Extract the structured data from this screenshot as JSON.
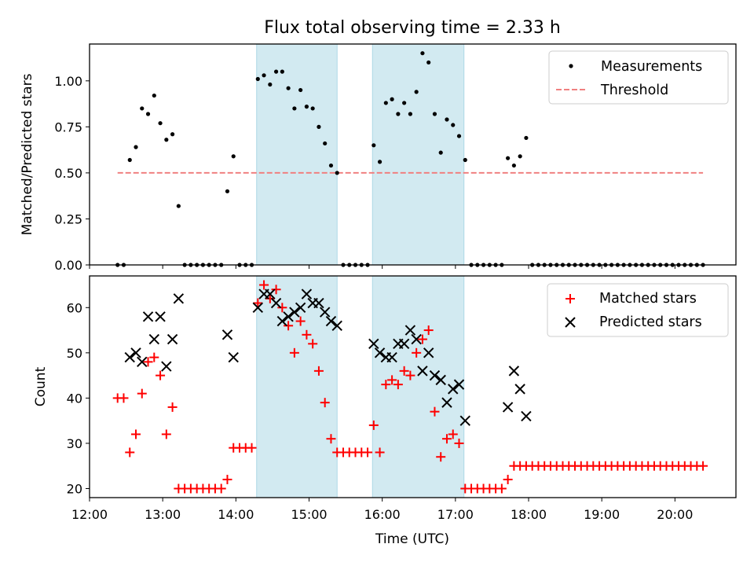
{
  "chart_data": [
    {
      "type": "scatter",
      "title": "Flux total observing time = 2.33 h",
      "xlabel": "",
      "ylabel": "Matched/Predicted stars",
      "xlim": [
        "12:00",
        "20:50"
      ],
      "ylim": [
        0,
        1.2
      ],
      "yticks": [
        "0.00",
        "0.25",
        "0.50",
        "0.75",
        "1.00"
      ],
      "grid": false,
      "legend_position": "top-right",
      "shaded_intervals": [
        [
          "14:17",
          "15:23"
        ],
        [
          "15:52",
          "17:07"
        ]
      ],
      "shade_color": "#add8e6",
      "series": [
        {
          "name": "Measurements",
          "kind": "points",
          "color": "#000000",
          "points": [
            [
              "12:23",
              0
            ],
            [
              "12:28",
              0
            ],
            [
              "12:33",
              0.57
            ],
            [
              "12:38",
              0.64
            ],
            [
              "12:43",
              0.85
            ],
            [
              "12:48",
              0.82
            ],
            [
              "12:53",
              0.92
            ],
            [
              "12:58",
              0.77
            ],
            [
              "13:03",
              0.68
            ],
            [
              "13:08",
              0.71
            ],
            [
              "13:13",
              0.32
            ],
            [
              "13:18",
              0
            ],
            [
              "13:23",
              0
            ],
            [
              "13:28",
              0
            ],
            [
              "13:33",
              0
            ],
            [
              "13:38",
              0
            ],
            [
              "13:43",
              0
            ],
            [
              "13:48",
              0
            ],
            [
              "13:53",
              0.4
            ],
            [
              "13:58",
              0.59
            ],
            [
              "14:03",
              0
            ],
            [
              "14:08",
              0
            ],
            [
              "14:13",
              0
            ],
            [
              "14:18",
              1.01
            ],
            [
              "14:23",
              1.03
            ],
            [
              "14:28",
              0.98
            ],
            [
              "14:33",
              1.05
            ],
            [
              "14:38",
              1.05
            ],
            [
              "14:43",
              0.96
            ],
            [
              "14:48",
              0.85
            ],
            [
              "14:53",
              0.95
            ],
            [
              "14:58",
              0.86
            ],
            [
              "15:03",
              0.85
            ],
            [
              "15:08",
              0.75
            ],
            [
              "15:13",
              0.66
            ],
            [
              "15:18",
              0.54
            ],
            [
              "15:23",
              0.5
            ],
            [
              "15:28",
              0
            ],
            [
              "15:33",
              0
            ],
            [
              "15:38",
              0
            ],
            [
              "15:43",
              0
            ],
            [
              "15:48",
              0
            ],
            [
              "15:53",
              0.65
            ],
            [
              "15:58",
              0.56
            ],
            [
              "16:03",
              0.88
            ],
            [
              "16:08",
              0.9
            ],
            [
              "16:13",
              0.82
            ],
            [
              "16:18",
              0.88
            ],
            [
              "16:23",
              0.82
            ],
            [
              "16:28",
              0.94
            ],
            [
              "16:33",
              1.15
            ],
            [
              "16:38",
              1.1
            ],
            [
              "16:43",
              0.82
            ],
            [
              "16:48",
              0.61
            ],
            [
              "16:53",
              0.79
            ],
            [
              "16:58",
              0.76
            ],
            [
              "17:03",
              0.7
            ],
            [
              "17:08",
              0.57
            ],
            [
              "17:13",
              0
            ],
            [
              "17:18",
              0
            ],
            [
              "17:23",
              0
            ],
            [
              "17:28",
              0
            ],
            [
              "17:33",
              0
            ],
            [
              "17:38",
              0
            ],
            [
              "17:43",
              0.58
            ],
            [
              "17:48",
              0.54
            ],
            [
              "17:53",
              0.59
            ],
            [
              "17:58",
              0.69
            ],
            [
              "18:03",
              0
            ],
            [
              "18:08",
              0
            ],
            [
              "18:13",
              0
            ],
            [
              "18:18",
              0
            ],
            [
              "18:23",
              0
            ],
            [
              "18:28",
              0
            ],
            [
              "18:33",
              0
            ],
            [
              "18:38",
              0
            ],
            [
              "18:43",
              0
            ],
            [
              "18:48",
              0
            ],
            [
              "18:53",
              0
            ],
            [
              "18:58",
              0
            ],
            [
              "19:03",
              0
            ],
            [
              "19:08",
              0
            ],
            [
              "19:13",
              0
            ],
            [
              "19:18",
              0
            ],
            [
              "19:23",
              0
            ],
            [
              "19:28",
              0
            ],
            [
              "19:33",
              0
            ],
            [
              "19:38",
              0
            ],
            [
              "19:43",
              0
            ],
            [
              "19:48",
              0
            ],
            [
              "19:53",
              0
            ],
            [
              "19:58",
              0
            ],
            [
              "20:03",
              0
            ],
            [
              "20:08",
              0
            ],
            [
              "20:13",
              0
            ],
            [
              "20:18",
              0
            ],
            [
              "20:23",
              0
            ]
          ]
        },
        {
          "name": "Threshold",
          "kind": "dashed-line",
          "color": "#f08080",
          "points": [
            [
              "12:23",
              0.5
            ],
            [
              "20:23",
              0.5
            ]
          ]
        }
      ]
    },
    {
      "type": "scatter",
      "title": "",
      "xlabel": "Time (UTC)",
      "ylabel": "Count",
      "xlim": [
        "12:00",
        "20:50"
      ],
      "ylim": [
        18,
        67
      ],
      "yticks": [
        "20",
        "30",
        "40",
        "50",
        "60"
      ],
      "xticks": [
        "12:00",
        "13:00",
        "14:00",
        "15:00",
        "16:00",
        "17:00",
        "18:00",
        "19:00",
        "20:00"
      ],
      "grid": false,
      "legend_position": "top-right",
      "shaded_intervals": [
        [
          "14:17",
          "15:23"
        ],
        [
          "15:52",
          "17:07"
        ]
      ],
      "shade_color": "#add8e6",
      "series": [
        {
          "name": "Matched stars",
          "marker": "plus",
          "color": "#ff0000",
          "points": [
            [
              "12:23",
              40
            ],
            [
              "12:28",
              40
            ],
            [
              "12:33",
              28
            ],
            [
              "12:38",
              32
            ],
            [
              "12:43",
              41
            ],
            [
              "12:48",
              48
            ],
            [
              "12:53",
              49
            ],
            [
              "12:58",
              45
            ],
            [
              "13:03",
              32
            ],
            [
              "13:08",
              38
            ],
            [
              "13:13",
              20
            ],
            [
              "13:18",
              20
            ],
            [
              "13:23",
              20
            ],
            [
              "13:28",
              20
            ],
            [
              "13:33",
              20
            ],
            [
              "13:38",
              20
            ],
            [
              "13:43",
              20
            ],
            [
              "13:48",
              20
            ],
            [
              "13:53",
              22
            ],
            [
              "13:58",
              29
            ],
            [
              "14:03",
              29
            ],
            [
              "14:08",
              29
            ],
            [
              "14:13",
              29
            ],
            [
              "14:18",
              61
            ],
            [
              "14:23",
              65
            ],
            [
              "14:28",
              62
            ],
            [
              "14:33",
              64
            ],
            [
              "14:38",
              60
            ],
            [
              "14:43",
              56
            ],
            [
              "14:48",
              50
            ],
            [
              "14:53",
              57
            ],
            [
              "14:58",
              54
            ],
            [
              "15:03",
              52
            ],
            [
              "15:08",
              46
            ],
            [
              "15:13",
              39
            ],
            [
              "15:18",
              31
            ],
            [
              "15:23",
              28
            ],
            [
              "15:28",
              28
            ],
            [
              "15:33",
              28
            ],
            [
              "15:38",
              28
            ],
            [
              "15:43",
              28
            ],
            [
              "15:48",
              28
            ],
            [
              "15:53",
              34
            ],
            [
              "15:58",
              28
            ],
            [
              "16:03",
              43
            ],
            [
              "16:08",
              44
            ],
            [
              "16:13",
              43
            ],
            [
              "16:18",
              46
            ],
            [
              "16:23",
              45
            ],
            [
              "16:28",
              50
            ],
            [
              "16:33",
              53
            ],
            [
              "16:38",
              55
            ],
            [
              "16:43",
              37
            ],
            [
              "16:48",
              27
            ],
            [
              "16:53",
              31
            ],
            [
              "16:58",
              32
            ],
            [
              "17:03",
              30
            ],
            [
              "17:08",
              20
            ],
            [
              "17:13",
              20
            ],
            [
              "17:18",
              20
            ],
            [
              "17:23",
              20
            ],
            [
              "17:28",
              20
            ],
            [
              "17:33",
              20
            ],
            [
              "17:38",
              20
            ],
            [
              "17:43",
              22
            ],
            [
              "17:48",
              25
            ],
            [
              "17:53",
              25
            ],
            [
              "17:58",
              25
            ],
            [
              "18:03",
              25
            ],
            [
              "18:08",
              25
            ],
            [
              "18:13",
              25
            ],
            [
              "18:18",
              25
            ],
            [
              "18:23",
              25
            ],
            [
              "18:28",
              25
            ],
            [
              "18:33",
              25
            ],
            [
              "18:38",
              25
            ],
            [
              "18:43",
              25
            ],
            [
              "18:48",
              25
            ],
            [
              "18:53",
              25
            ],
            [
              "18:58",
              25
            ],
            [
              "19:03",
              25
            ],
            [
              "19:08",
              25
            ],
            [
              "19:13",
              25
            ],
            [
              "19:18",
              25
            ],
            [
              "19:23",
              25
            ],
            [
              "19:28",
              25
            ],
            [
              "19:33",
              25
            ],
            [
              "19:38",
              25
            ],
            [
              "19:43",
              25
            ],
            [
              "19:48",
              25
            ],
            [
              "19:53",
              25
            ],
            [
              "19:58",
              25
            ],
            [
              "20:03",
              25
            ],
            [
              "20:08",
              25
            ],
            [
              "20:13",
              25
            ],
            [
              "20:18",
              25
            ],
            [
              "20:23",
              25
            ]
          ]
        },
        {
          "name": "Predicted stars",
          "marker": "x",
          "color": "#000000",
          "points": [
            [
              "12:33",
              49
            ],
            [
              "12:38",
              50
            ],
            [
              "12:43",
              48
            ],
            [
              "12:48",
              58
            ],
            [
              "12:53",
              53
            ],
            [
              "12:58",
              58
            ],
            [
              "13:03",
              47
            ],
            [
              "13:08",
              53
            ],
            [
              "13:13",
              62
            ],
            [
              "13:53",
              54
            ],
            [
              "13:58",
              49
            ],
            [
              "14:18",
              60
            ],
            [
              "14:23",
              63
            ],
            [
              "14:28",
              63
            ],
            [
              "14:33",
              61
            ],
            [
              "14:38",
              57
            ],
            [
              "14:43",
              58
            ],
            [
              "14:48",
              59
            ],
            [
              "14:53",
              60
            ],
            [
              "14:58",
              63
            ],
            [
              "15:03",
              61
            ],
            [
              "15:08",
              61
            ],
            [
              "15:13",
              59
            ],
            [
              "15:18",
              57
            ],
            [
              "15:23",
              56
            ],
            [
              "15:53",
              52
            ],
            [
              "15:58",
              50
            ],
            [
              "16:03",
              49
            ],
            [
              "16:08",
              49
            ],
            [
              "16:13",
              52
            ],
            [
              "16:18",
              52
            ],
            [
              "16:23",
              55
            ],
            [
              "16:28",
              53
            ],
            [
              "16:33",
              46
            ],
            [
              "16:38",
              50
            ],
            [
              "16:43",
              45
            ],
            [
              "16:48",
              44
            ],
            [
              "16:53",
              39
            ],
            [
              "16:58",
              42
            ],
            [
              "17:03",
              43
            ],
            [
              "17:08",
              35
            ],
            [
              "17:43",
              38
            ],
            [
              "17:48",
              46
            ],
            [
              "17:53",
              42
            ],
            [
              "17:58",
              36
            ]
          ]
        }
      ]
    }
  ]
}
